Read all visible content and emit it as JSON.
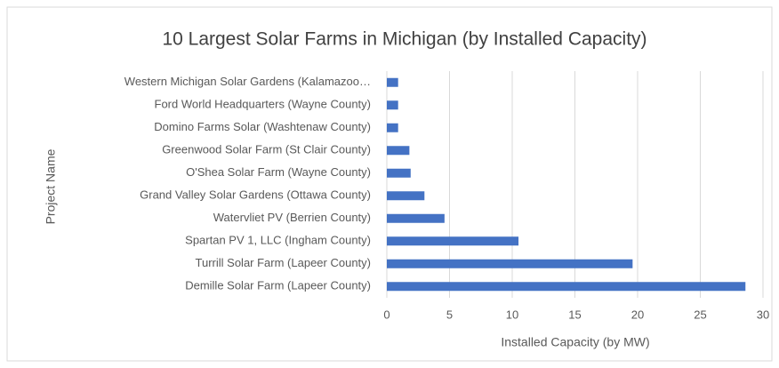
{
  "chart_data": {
    "type": "bar",
    "orientation": "horizontal",
    "title": "10 Largest Solar Farms in Michigan (by Installed Capacity)",
    "x_label": "Installed Capacity (by MW)",
    "y_label": "Project Name",
    "categories": [
      "Western Michigan Solar Gardens (Kalamazoo…",
      "Ford World Headquarters (Wayne County)",
      "Domino Farms Solar (Washtenaw County)",
      "Greenwood Solar Farm (St Clair County)",
      "O'Shea Solar Farm (Wayne County)",
      "Grand Valley Solar Gardens (Ottawa County)",
      "Watervliet PV (Berrien County)",
      "Spartan PV 1, LLC (Ingham County)",
      "Turrill Solar Farm (Lapeer County)",
      "Demille Solar Farm (Lapeer County)"
    ],
    "values": [
      0.9,
      0.9,
      0.9,
      1.8,
      1.9,
      3.0,
      4.6,
      10.5,
      19.6,
      28.6
    ],
    "color": "#4472c4",
    "xlim": [
      0,
      30
    ],
    "xticks": [
      0,
      5,
      10,
      15,
      20,
      25,
      30
    ],
    "grid": true
  }
}
